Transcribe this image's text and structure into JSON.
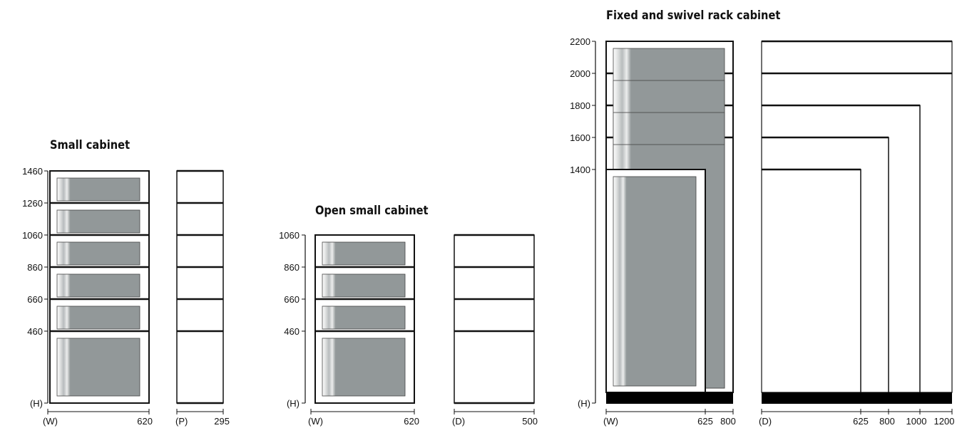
{
  "diagrams": {
    "small_cabinet": {
      "title": "Small cabinet",
      "height_ticks": [
        "1460",
        "1260",
        "1060",
        "860",
        "660",
        "460"
      ],
      "height_axis_label": "(H)",
      "width_label": "(W)",
      "width_value": "620",
      "depth_label": "(P)",
      "depth_value": "295"
    },
    "open_small_cabinet": {
      "title": "Open small cabinet",
      "height_ticks": [
        "1060",
        "860",
        "660",
        "460"
      ],
      "height_axis_label": "(H)",
      "width_label": "(W)",
      "width_value": "620",
      "depth_label": "(D)",
      "depth_value": "500"
    },
    "rack_cabinet": {
      "title": "Fixed and swivel rack cabinet",
      "height_ticks": [
        "2200",
        "2000",
        "1800",
        "1600",
        "1400"
      ],
      "height_axis_label": "(H)",
      "width_label": "(W)",
      "width_values": [
        "625",
        "800"
      ],
      "depth_label": "(D)",
      "depth_values": [
        "625",
        "800",
        "1000",
        "1200"
      ]
    }
  },
  "colors": {
    "line": "#111111",
    "door": "#929899",
    "door_edge": "#444444",
    "base": "#000000"
  }
}
